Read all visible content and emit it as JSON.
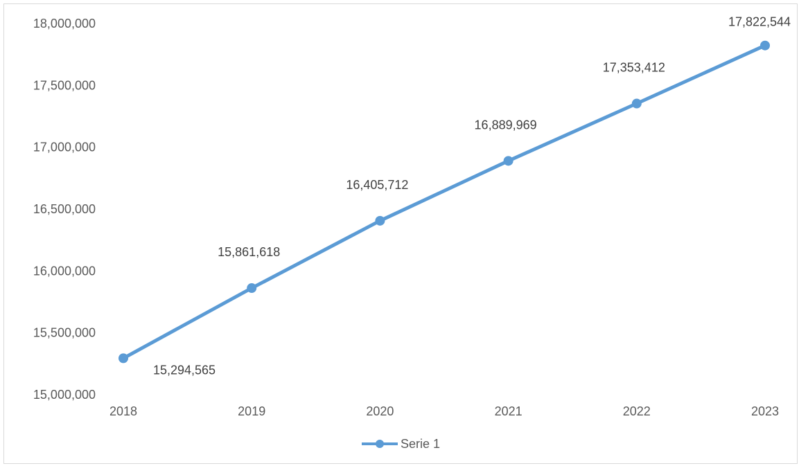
{
  "chart_data": {
    "type": "line",
    "categories": [
      "2018",
      "2019",
      "2020",
      "2021",
      "2022",
      "2023"
    ],
    "series": [
      {
        "name": "Serie 1",
        "values": [
          15294565,
          15861618,
          16405712,
          16889969,
          17353412,
          17822544
        ],
        "labels": [
          "15,294,565",
          "15,861,618",
          "16,405,712",
          "16,889,969",
          "17,353,412",
          "17,822,544"
        ],
        "color": "#5B9BD5"
      }
    ],
    "ylim": [
      15000000,
      18000000
    ],
    "yticks": [
      15000000,
      15500000,
      16000000,
      16500000,
      17000000,
      17500000,
      18000000
    ],
    "ytick_labels": [
      "15,000,000",
      "15,500,000",
      "16,000,000",
      "16,500,000",
      "17,000,000",
      "17,500,000",
      "18,000,000"
    ],
    "grid": false,
    "legend_position": "bottom",
    "border_color": "#D9D9D9"
  }
}
